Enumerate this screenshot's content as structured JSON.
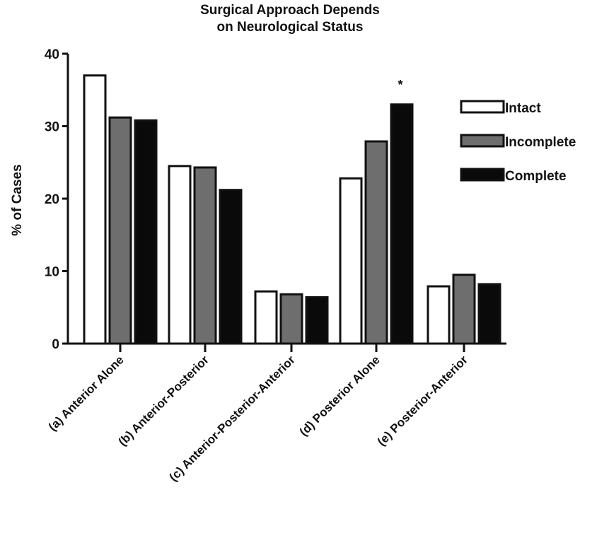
{
  "chart_data": {
    "type": "bar",
    "title": [
      "Surgical Approach Depends",
      "on Neurological Status"
    ],
    "xlabel": "",
    "ylabel": "% of Cases",
    "ylim": [
      0,
      40
    ],
    "yticks": [
      0,
      10,
      20,
      30,
      40
    ],
    "grid": false,
    "legend_position": "right",
    "categories": [
      "(a) Anterior Alone",
      "(b) Anterior-Posterior",
      "(c) Anterior-Posterior-Anterior",
      "(d) Posterior Alone",
      "(e) Posterior-Anterior"
    ],
    "series": [
      {
        "name": "Intact",
        "color": "#ffffff",
        "values": [
          37.0,
          24.5,
          7.2,
          22.8,
          7.9
        ]
      },
      {
        "name": "Incomplete",
        "color": "#6e6e6e",
        "values": [
          31.2,
          24.3,
          6.8,
          27.9,
          9.5
        ]
      },
      {
        "name": "Complete",
        "color": "#0a0a0a",
        "values": [
          30.8,
          21.2,
          6.4,
          33.0,
          8.2
        ]
      }
    ],
    "annotations": [
      {
        "text": "*",
        "category_index": 3,
        "series_index": 2
      }
    ]
  }
}
